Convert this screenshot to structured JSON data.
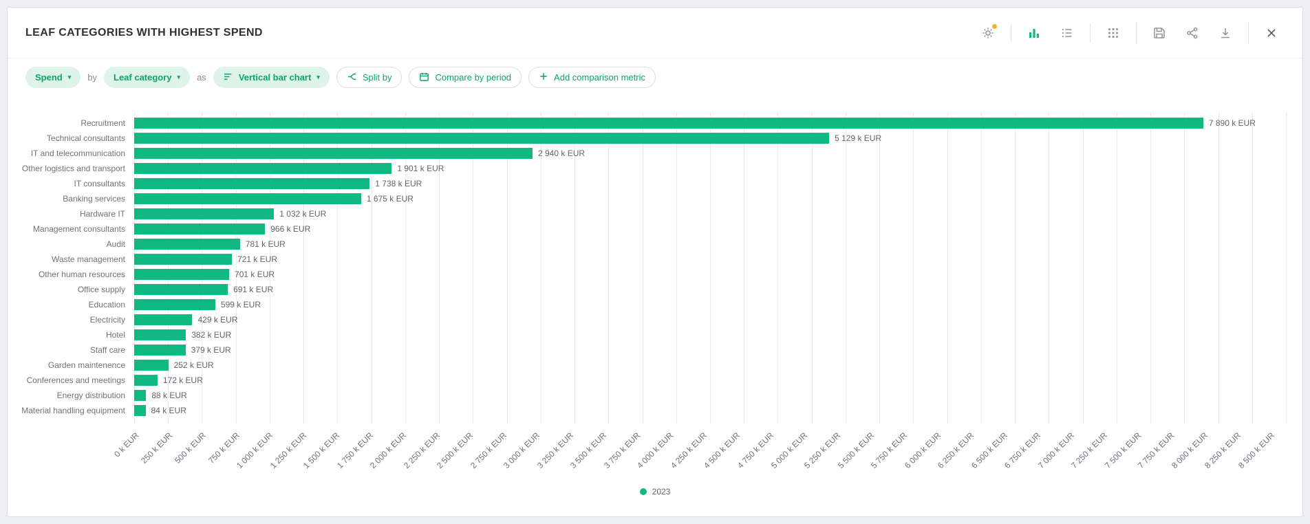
{
  "header": {
    "title": "LEAF CATEGORIES WITH HIGHEST SPEND",
    "icons": [
      {
        "name": "settings-gear-icon",
        "badge": "notification-dot"
      },
      {
        "name": "bar-chart-view-icon",
        "active": true
      },
      {
        "name": "list-view-icon"
      },
      {
        "name": "grid-view-icon"
      },
      {
        "name": "save-icon"
      },
      {
        "name": "share-icon"
      },
      {
        "name": "download-icon"
      },
      {
        "name": "close-icon"
      }
    ]
  },
  "toolbar": {
    "metric_label": "Spend",
    "by_label": "by",
    "dimension_label": "Leaf category",
    "as_label": "as",
    "chart_type_label": "Vertical bar chart",
    "split_by_label": "Split by",
    "compare_label": "Compare by period",
    "add_metric_label": "Add comparison metric"
  },
  "chart_data": {
    "type": "bar",
    "orientation": "horizontal",
    "color": "#10b981",
    "unit": "k EUR",
    "xlim": [
      0,
      8500
    ],
    "grid": true,
    "categories": [
      "Recruitment",
      "Technical consultants",
      "IT and telecommunication",
      "Other logistics and transport",
      "IT consultants",
      "Banking services",
      "Hardware IT",
      "Management consultants",
      "Audit",
      "Waste management",
      "Other human resources",
      "Office supply",
      "Education",
      "Electricity",
      "Hotel",
      "Staff care",
      "Garden maintenence",
      "Conferences and meetings",
      "Energy distribution",
      "Material handling equipment"
    ],
    "values": [
      7890,
      5129,
      2940,
      1901,
      1738,
      1675,
      1032,
      966,
      781,
      721,
      701,
      691,
      599,
      429,
      382,
      379,
      252,
      172,
      88,
      84
    ],
    "value_labels": [
      "7 890 k EUR",
      "5 129 k EUR",
      "2 940 k EUR",
      "1 901 k EUR",
      "1 738 k EUR",
      "1 675 k EUR",
      "1 032 k EUR",
      "966 k EUR",
      "781 k EUR",
      "721 k EUR",
      "701 k EUR",
      "691 k EUR",
      "599 k EUR",
      "429 k EUR",
      "382 k EUR",
      "379 k EUR",
      "252 k EUR",
      "172 k EUR",
      "88 k EUR",
      "84 k EUR"
    ],
    "tick_values": [
      0,
      250,
      500,
      750,
      1000,
      1250,
      1500,
      1750,
      2000,
      2250,
      2500,
      2750,
      3000,
      3250,
      3500,
      3750,
      4000,
      4250,
      4500,
      4750,
      5000,
      5250,
      5500,
      5750,
      6000,
      6250,
      6500,
      6750,
      7000,
      7250,
      7500,
      7750,
      8000,
      8250,
      8500
    ],
    "tick_labels": [
      "0 k EUR",
      "250 k EUR",
      "500 k EUR",
      "750 k EUR",
      "1 000 k EUR",
      "1 250 k EUR",
      "1 500 k EUR",
      "1 750 k EUR",
      "2 000 k EUR",
      "2 250 k EUR",
      "2 500 k EUR",
      "2 750 k EUR",
      "3 000 k EUR",
      "3 250 k EUR",
      "3 500 k EUR",
      "3 750 k EUR",
      "4 000 k EUR",
      "4 250 k EUR",
      "4 500 k EUR",
      "4 750 k EUR",
      "5 000 k EUR",
      "5 250 k EUR",
      "5 500 k EUR",
      "5 750 k EUR",
      "6 000 k EUR",
      "6 250 k EUR",
      "6 500 k EUR",
      "6 750 k EUR",
      "7 000 k EUR",
      "7 250 k EUR",
      "7 500 k EUR",
      "7 750 k EUR",
      "8 000 k EUR",
      "8 250 k EUR",
      "8 500 k EUR"
    ],
    "legend": [
      {
        "label": "2023",
        "color": "#10b981"
      }
    ],
    "legend_position": "bottom-center"
  }
}
